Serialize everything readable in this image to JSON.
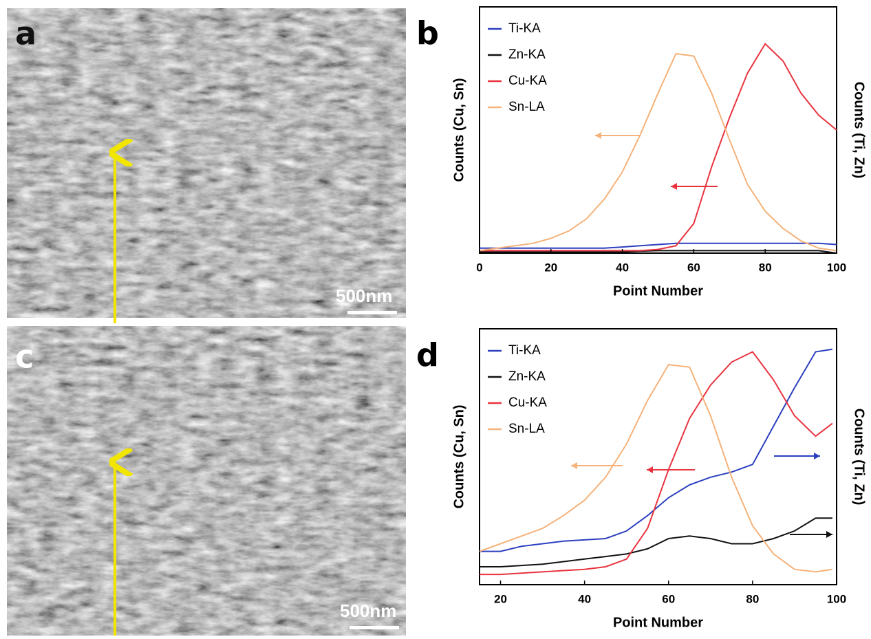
{
  "images": [
    {
      "label": "a",
      "scale_bar": "500nm"
    },
    {
      "label": "c",
      "scale_bar": "500nm"
    }
  ],
  "chart_data": [
    {
      "type": "line",
      "label": "b",
      "xlabel": "Point Number",
      "ylabel": "Counts (Cu, Sn)",
      "y2label": "Counts (Ti, Zn)",
      "x": [
        0,
        5,
        10,
        15,
        20,
        25,
        30,
        35,
        40,
        45,
        50,
        55,
        60,
        65,
        70,
        75,
        80,
        85,
        90,
        95,
        100
      ],
      "xlim": [
        0,
        100
      ],
      "xticks": [
        0,
        20,
        40,
        60,
        80,
        100
      ],
      "ylim": [
        0,
        100
      ],
      "y2lim": [
        0,
        100
      ],
      "legend": "upper left",
      "series": [
        {
          "name": "Ti-KA",
          "color": "#2b3fbf",
          "axis": "y2",
          "values": [
            2,
            2,
            2,
            2,
            2,
            2,
            2,
            2,
            2.5,
            3,
            3.5,
            4,
            4,
            4,
            4,
            4,
            4,
            4,
            4,
            4,
            3.5
          ]
        },
        {
          "name": "Zn-KA",
          "color": "#111111",
          "axis": "y2",
          "values": [
            0.5,
            0.5,
            0.5,
            0.5,
            0.5,
            0.5,
            0.5,
            0.5,
            0.5,
            0.8,
            1,
            1,
            1,
            1,
            1,
            1,
            1,
            1,
            1,
            1,
            0
          ]
        },
        {
          "name": "Cu-KA",
          "color": "#e8333f",
          "values": [
            1,
            1,
            1,
            1,
            1,
            1,
            1,
            1,
            1,
            1,
            1.5,
            3,
            12,
            35,
            55,
            73,
            85,
            78,
            65,
            56,
            50
          ]
        },
        {
          "name": "Sn-LA",
          "color": "#f5b27a",
          "values": [
            1,
            2,
            3,
            4,
            6,
            9,
            14,
            22,
            33,
            48,
            65,
            81,
            80,
            65,
            46,
            28,
            17,
            10,
            5,
            2,
            1
          ]
        }
      ]
    },
    {
      "type": "line",
      "label": "d",
      "xlabel": "Point Number",
      "ylabel": "Counts (Cu, Sn)",
      "y2label": "Counts (Ti, Zn)",
      "x": [
        15,
        20,
        25,
        30,
        35,
        40,
        45,
        50,
        55,
        60,
        65,
        70,
        75,
        80,
        85,
        90,
        95,
        99
      ],
      "xlim": [
        15,
        100
      ],
      "xticks": [
        20,
        40,
        60,
        80,
        100
      ],
      "ylim": [
        0,
        100
      ],
      "y2lim": [
        0,
        100
      ],
      "legend": "upper left",
      "series": [
        {
          "name": "Ti-KA",
          "color": "#2b3fbf",
          "axis": "y2",
          "values": [
            13,
            13,
            15,
            16,
            17,
            17.5,
            18,
            21,
            27,
            34,
            39,
            42,
            44,
            47,
            62,
            77,
            91,
            92
          ]
        },
        {
          "name": "Zn-KA",
          "color": "#111111",
          "axis": "y2",
          "values": [
            7,
            7,
            7.5,
            8,
            9,
            10,
            11,
            12,
            14,
            18,
            19,
            18,
            16,
            16,
            18,
            21,
            26,
            26
          ]
        },
        {
          "name": "Cu-KA",
          "color": "#e8333f",
          "values": [
            4,
            4,
            4.5,
            5,
            5.5,
            6,
            7,
            10,
            22,
            45,
            65,
            78,
            87,
            91,
            80,
            66,
            58,
            63
          ]
        },
        {
          "name": "Sn-LA",
          "color": "#f5b27a",
          "values": [
            13,
            16,
            19,
            22,
            27,
            33,
            42,
            55,
            72,
            86,
            85,
            66,
            42,
            23,
            12,
            6,
            5,
            6
          ]
        }
      ]
    }
  ]
}
